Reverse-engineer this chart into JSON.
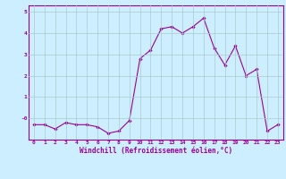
{
  "x": [
    0,
    1,
    2,
    3,
    4,
    5,
    6,
    7,
    8,
    9,
    10,
    11,
    12,
    13,
    14,
    15,
    16,
    17,
    18,
    19,
    20,
    21,
    22,
    23
  ],
  "y": [
    -0.3,
    -0.3,
    -0.5,
    -0.2,
    -0.3,
    -0.3,
    -0.4,
    -0.7,
    -0.6,
    -0.1,
    2.8,
    3.2,
    4.2,
    4.3,
    4.0,
    4.3,
    4.7,
    3.3,
    2.5,
    3.4,
    2.0,
    2.3,
    -0.6,
    -0.3
  ],
  "line_color": "#990099",
  "marker": "D",
  "marker_size": 1.8,
  "line_width": 0.8,
  "bg_color": "#cceeff",
  "grid_color": "#aacccc",
  "xlabel": "Windchill (Refroidissement éolien,°C)",
  "xlabel_color": "#990099",
  "tick_color": "#990099",
  "xlim": [
    -0.5,
    23.5
  ],
  "ylim": [
    -1.0,
    5.3
  ],
  "yticks": [
    0,
    1,
    2,
    3,
    4,
    5
  ],
  "ytick_labels": [
    "-0",
    "1",
    "2",
    "3",
    "4",
    "5"
  ],
  "xticks": [
    0,
    1,
    2,
    3,
    4,
    5,
    6,
    7,
    8,
    9,
    10,
    11,
    12,
    13,
    14,
    15,
    16,
    17,
    18,
    19,
    20,
    21,
    22,
    23
  ],
  "spine_color": "#990099"
}
